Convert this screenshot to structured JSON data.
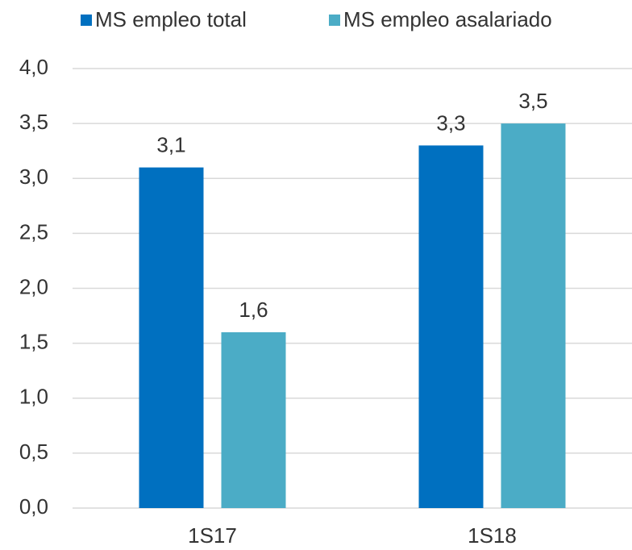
{
  "chart_data": {
    "type": "bar",
    "categories": [
      "1S17",
      "1S18"
    ],
    "series": [
      {
        "name": "MS empleo total",
        "color": "#0070c0",
        "values": [
          3.1,
          3.3
        ],
        "value_labels": [
          "3,1",
          "3,3"
        ]
      },
      {
        "name": "MS empleo asalariado",
        "color": "#4bacc6",
        "values": [
          1.6,
          3.5
        ],
        "value_labels": [
          "1,6",
          "3,5"
        ]
      }
    ],
    "ylim": [
      0,
      4
    ],
    "yticks": [
      {
        "value": 0,
        "label": "0,0"
      },
      {
        "value": 0.5,
        "label": "0,5"
      },
      {
        "value": 1,
        "label": "1,0"
      },
      {
        "value": 1.5,
        "label": "1,5"
      },
      {
        "value": 2,
        "label": "2,0"
      },
      {
        "value": 2.5,
        "label": "2,5"
      },
      {
        "value": 3,
        "label": "3,0"
      },
      {
        "value": 3.5,
        "label": "3,5"
      },
      {
        "value": 4,
        "label": "4,0"
      }
    ],
    "grid": true,
    "legend": "top"
  }
}
